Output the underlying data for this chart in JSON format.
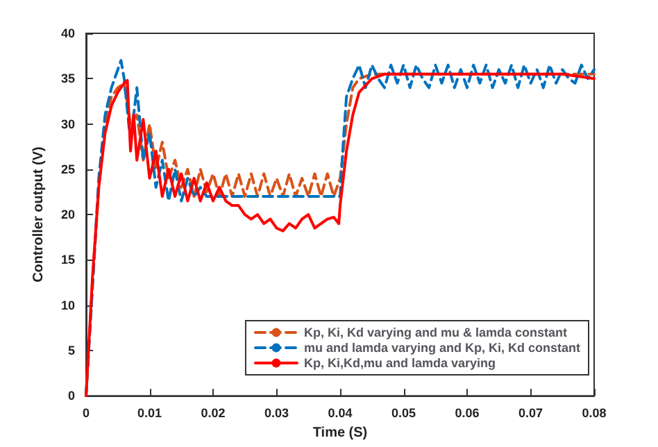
{
  "chart_data": {
    "type": "line",
    "xlabel": "Time (S)",
    "ylabel": "Controller output (V)",
    "xlim": [
      0,
      0.08
    ],
    "ylim": [
      0,
      40
    ],
    "xticks": [
      0,
      0.01,
      0.02,
      0.03,
      0.04,
      0.05,
      0.06,
      0.07,
      0.08
    ],
    "yticks": [
      0,
      5,
      10,
      15,
      20,
      25,
      30,
      35,
      40
    ],
    "grid": false,
    "legend": "bottom right",
    "marker": "none",
    "series": [
      {
        "name": "Kp, Ki, Kd varying and mu & lamda constant",
        "color": "#d95319",
        "line_style": "dashed",
        "x": [
          0,
          0.001,
          0.002,
          0.003,
          0.004,
          0.005,
          0.006,
          0.007,
          0.008,
          0.009,
          0.01,
          0.011,
          0.012,
          0.013,
          0.014,
          0.015,
          0.016,
          0.017,
          0.018,
          0.019,
          0.02,
          0.021,
          0.022,
          0.023,
          0.024,
          0.025,
          0.026,
          0.027,
          0.028,
          0.029,
          0.03,
          0.031,
          0.032,
          0.033,
          0.034,
          0.035,
          0.036,
          0.037,
          0.038,
          0.039,
          0.04,
          0.041,
          0.042,
          0.043,
          0.045,
          0.05,
          0.06,
          0.07,
          0.08
        ],
        "values": [
          0,
          12,
          23,
          30,
          33,
          34,
          34.5,
          30,
          31,
          26,
          30,
          25,
          28,
          24,
          26,
          23,
          25,
          22,
          25,
          22.5,
          24.5,
          22,
          24.5,
          22,
          24.5,
          22,
          24.5,
          22,
          24.5,
          22,
          24,
          22,
          24.5,
          22,
          24,
          22,
          24.5,
          22,
          24.5,
          22,
          24,
          30,
          34,
          35,
          35.5,
          35.5,
          35.5,
          35.5,
          35.5
        ]
      },
      {
        "name": "mu and lamda varying and Kp, Ki, Kd constant",
        "color": "#0072bd",
        "line_style": "dashed",
        "x": [
          0,
          0.001,
          0.002,
          0.003,
          0.004,
          0.005,
          0.0055,
          0.006,
          0.007,
          0.0075,
          0.008,
          0.009,
          0.01,
          0.011,
          0.012,
          0.013,
          0.014,
          0.015,
          0.016,
          0.017,
          0.018,
          0.019,
          0.02,
          0.03,
          0.04,
          0.0405,
          0.041,
          0.042,
          0.043,
          0.044,
          0.045,
          0.046,
          0.047,
          0.048,
          0.049,
          0.05,
          0.051,
          0.052,
          0.053,
          0.054,
          0.055,
          0.056,
          0.057,
          0.058,
          0.059,
          0.06,
          0.061,
          0.062,
          0.063,
          0.064,
          0.065,
          0.066,
          0.067,
          0.068,
          0.069,
          0.07,
          0.071,
          0.072,
          0.073,
          0.074,
          0.075,
          0.076,
          0.077,
          0.078,
          0.079,
          0.08
        ],
        "values": [
          0,
          12,
          24,
          31,
          34,
          36,
          37,
          35,
          28,
          31,
          34,
          26,
          29,
          23,
          26,
          21.5,
          25,
          21.5,
          24,
          22,
          23,
          22,
          22,
          22,
          22,
          28,
          33,
          35,
          36.5,
          34,
          36.5,
          35,
          34,
          36.5,
          34.5,
          36.5,
          34,
          36.5,
          35,
          34,
          36.5,
          34.5,
          36.5,
          34,
          36,
          34,
          36.5,
          34.5,
          36.5,
          34,
          36,
          34.5,
          36.5,
          34,
          36.5,
          34.5,
          36,
          34,
          36.5,
          34.5,
          36,
          35,
          34.5,
          36.5,
          35,
          36
        ]
      },
      {
        "name": "Kp, Ki,Kd,mu and lamda varying",
        "color": "#ff0000",
        "line_style": "solid",
        "x": [
          0,
          0.001,
          0.002,
          0.003,
          0.004,
          0.005,
          0.006,
          0.0065,
          0.007,
          0.0075,
          0.008,
          0.009,
          0.01,
          0.011,
          0.012,
          0.013,
          0.014,
          0.015,
          0.016,
          0.017,
          0.018,
          0.019,
          0.02,
          0.021,
          0.022,
          0.023,
          0.024,
          0.025,
          0.026,
          0.027,
          0.028,
          0.029,
          0.03,
          0.031,
          0.032,
          0.033,
          0.034,
          0.035,
          0.036,
          0.037,
          0.038,
          0.039,
          0.0398,
          0.04,
          0.041,
          0.042,
          0.043,
          0.045,
          0.047,
          0.05,
          0.055,
          0.06,
          0.065,
          0.07,
          0.075,
          0.08
        ],
        "values": [
          0,
          13,
          23,
          29,
          32,
          33.5,
          34.5,
          34.8,
          27,
          31,
          26,
          30.5,
          24,
          27,
          22,
          25,
          22,
          24.5,
          21.5,
          24,
          21.5,
          23.5,
          21.5,
          23,
          21.5,
          21,
          21,
          20,
          19.5,
          20,
          19,
          19.5,
          18.5,
          18.2,
          19,
          18.5,
          19.5,
          20,
          18.5,
          19,
          19.5,
          19.7,
          19,
          21,
          27,
          31,
          33.5,
          35,
          35.5,
          35.5,
          35.5,
          35.5,
          35.5,
          35.5,
          35.5,
          35
        ]
      }
    ]
  }
}
